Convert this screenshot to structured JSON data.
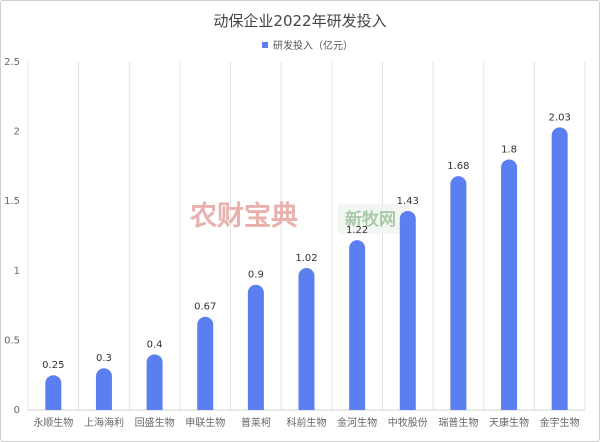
{
  "chart_data": {
    "type": "bar",
    "title": "动保企业2022年研发投入",
    "xlabel": "",
    "ylabel": "",
    "categories": [
      "永顺生物",
      "上海海利",
      "回盛生物",
      "申联生物",
      "普莱柯",
      "科前生物",
      "金河生物",
      "中牧股份",
      "瑞普生物",
      "天康生物",
      "金宇生物"
    ],
    "series": [
      {
        "name": "研发投入（亿元）",
        "values": [
          0.25,
          0.3,
          0.4,
          0.67,
          0.9,
          1.02,
          1.22,
          1.43,
          1.68,
          1.8,
          2.03
        ]
      }
    ],
    "data_labels": [
      "0.25",
      "0.3",
      "0.4",
      "0.67",
      "0.9",
      "1.02",
      "1.22",
      "1.43",
      "1.68",
      "1.8",
      "2.03"
    ],
    "ylim": [
      0,
      2.5
    ],
    "yticks": [
      0,
      0.5,
      1,
      1.5,
      2,
      2.5
    ],
    "ytick_labels": [
      "0",
      "0.5",
      "1",
      "1.5",
      "2",
      "2.5"
    ],
    "grid": "vertical",
    "legend_position": "top-center",
    "bar_color": "#5b7ff0"
  },
  "watermark": {
    "left_text": "农财宝典",
    "right_text": "新牧网"
  }
}
